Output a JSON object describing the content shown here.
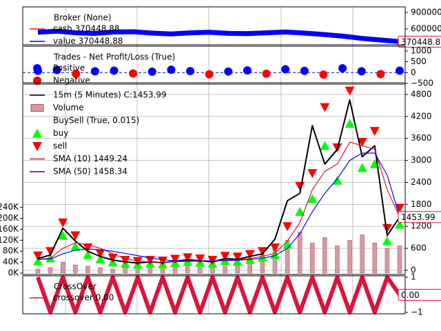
{
  "chart_data": [
    {
      "type": "line",
      "legend_title": "Broker (None)",
      "categories": [
        null,
        null,
        null,
        null,
        null,
        null,
        null,
        null,
        null,
        null,
        null,
        null,
        null,
        null,
        null,
        null,
        null,
        null,
        null,
        null
      ],
      "series": [
        {
          "name": "cash 370448.88",
          "color": "#dc143c",
          "values": [
            540000,
            560000,
            530000,
            520000,
            545000,
            550000,
            525000,
            510000,
            530000,
            540000,
            520000,
            515000,
            530000,
            545000,
            525000,
            500000,
            470000,
            430000,
            400000,
            370448.88
          ]
        },
        {
          "name": "value 370448.88",
          "color": "#0000ff",
          "values": [
            540000,
            560000,
            530000,
            520000,
            545000,
            550000,
            525000,
            510000,
            530000,
            540000,
            520000,
            515000,
            530000,
            545000,
            525000,
            500000,
            470000,
            430000,
            400000,
            370448.88
          ]
        }
      ],
      "ylim": [
        312500,
        1000000
      ],
      "yticks": [
        900000,
        600000
      ]
    },
    {
      "type": "scatter",
      "legend_title": "Trades - Net Profit/Loss (True)",
      "categories": [
        null,
        null,
        null,
        null,
        null,
        null,
        null,
        null,
        null,
        null,
        null,
        null,
        null,
        null,
        null,
        null,
        null,
        null,
        null,
        null
      ],
      "series": [
        {
          "name": "Positive",
          "color": "#0000ff",
          "values": [
            80,
            120,
            null,
            60,
            90,
            null,
            40,
            130,
            70,
            null,
            50,
            100,
            null,
            150,
            80,
            null,
            200,
            60,
            null,
            90
          ]
        },
        {
          "name": "Negative",
          "color": "#ff0000",
          "values": [
            null,
            null,
            -60,
            null,
            null,
            -40,
            null,
            null,
            null,
            -80,
            null,
            null,
            -50,
            null,
            null,
            -90,
            null,
            null,
            -70,
            null
          ]
        }
      ],
      "ylim": [
        -470,
        1220
      ],
      "yticks": [
        1000,
        500,
        0,
        {
          "value": -500,
          "label": "−500"
        }
      ]
    },
    {
      "type": "candle-line",
      "buysell_title": "BuySell (True, 0.015)",
      "categories": [
        null,
        null,
        null,
        null,
        null,
        null,
        null,
        null,
        null,
        null,
        null,
        null,
        null,
        null,
        null,
        null,
        null,
        null,
        null,
        null,
        null,
        null,
        null,
        null,
        null,
        null,
        null,
        null,
        null,
        null
      ],
      "series": [
        {
          "name": "15m (5 Minutes) C:1453.99",
          "color": "#000000",
          "axis": "y2",
          "values": [
            320,
            420,
            1150,
            800,
            520,
            380,
            280,
            230,
            200,
            230,
            210,
            250,
            290,
            260,
            230,
            320,
            300,
            380,
            450,
            850,
            1900,
            2100,
            3950,
            2900,
            3300,
            4650,
            3100,
            3400,
            950,
            1453.99
          ]
        },
        {
          "name": "Volume",
          "color": "#d49aa4",
          "kind": "bar",
          "values": [
            15000,
            20000,
            40000,
            30000,
            25000,
            20000,
            15000,
            20000,
            25000,
            30000,
            35000,
            30000,
            40000,
            45000,
            40000,
            50000,
            45000,
            55000,
            70000,
            90000,
            120000,
            150000,
            110000,
            130000,
            100000,
            120000,
            140000,
            110000,
            90000,
            100000
          ]
        },
        {
          "name": "buy",
          "color": "#00ff00",
          "axis": "y2",
          "kind": "up",
          "values": [
            250,
            330,
            950,
            650,
            420,
            300,
            220,
            180,
            160,
            180,
            165,
            200,
            235,
            210,
            180,
            260,
            240,
            290,
            350,
            420,
            700,
            1600,
            1950,
            3400,
            2450,
            4000,
            2800,
            2900,
            800,
            1250
          ]
        },
        {
          "name": "sell",
          "color": "#ff0000",
          "axis": "y2",
          "kind": "down",
          "values": [
            400,
            520,
            1300,
            950,
            620,
            460,
            340,
            280,
            250,
            280,
            260,
            310,
            350,
            320,
            280,
            390,
            370,
            440,
            520,
            620,
            1200,
            2300,
            2650,
            4450,
            3350,
            4900,
            3500,
            3800,
            1150,
            1700
          ]
        },
        {
          "name": "SMA (10) 1449.24",
          "color": "#dc143c",
          "axis": "y2",
          "values": [
            300,
            330,
            600,
            750,
            700,
            600,
            450,
            320,
            250,
            230,
            220,
            230,
            250,
            265,
            260,
            280,
            290,
            320,
            380,
            460,
            800,
            1300,
            2200,
            2700,
            2900,
            3500,
            3400,
            3300,
            2200,
            1449.24
          ]
        },
        {
          "name": "SMA (50) 1458.34",
          "color": "#0000ff",
          "axis": "y2",
          "values": [
            300,
            310,
            450,
            550,
            580,
            560,
            520,
            460,
            400,
            340,
            290,
            260,
            250,
            250,
            255,
            265,
            275,
            295,
            330,
            400,
            600,
            1000,
            1600,
            2100,
            2500,
            3000,
            3200,
            3200,
            2600,
            1458.34
          ]
        }
      ],
      "ylim": [
        -5000,
        690000
      ],
      "yticks": [
        {
          "value": 0,
          "label": "0K"
        },
        {
          "value": 40000,
          "label": "40K"
        },
        {
          "value": 80000,
          "label": "80K"
        },
        {
          "value": 120000,
          "label": "120K"
        },
        {
          "value": 160000,
          "label": "160K"
        },
        {
          "value": 200000,
          "label": "200K"
        },
        {
          "value": 240000,
          "label": "240K"
        }
      ],
      "y2lim": [
        -113,
        5082
      ],
      "y2ticks": [
        4800,
        4200,
        3600,
        3000,
        2400,
        1800,
        1200,
        600,
        0
      ]
    },
    {
      "type": "line",
      "legend_title": "CrossOver",
      "current_label": "0.00",
      "categories": [
        null,
        null,
        null,
        null,
        null,
        null,
        null,
        null,
        null,
        null,
        null,
        null,
        null,
        null,
        null,
        null,
        null,
        null,
        null,
        null,
        null,
        null,
        null,
        null,
        null,
        null,
        null,
        null,
        null,
        null
      ],
      "series": [
        {
          "name": "crossover 0.00",
          "color": "#dc143c",
          "values": [
            1,
            -1,
            1,
            -1,
            1,
            -1,
            1,
            -1,
            1,
            -1,
            1,
            -1,
            1,
            -1,
            1,
            -1,
            1,
            -1,
            1,
            -1,
            1,
            -1,
            1,
            -1,
            1,
            -1,
            1,
            -1,
            1,
            0
          ]
        }
      ],
      "ylim": [
        -1.08,
        1.08
      ],
      "yticks": [
        1,
        {
          "value": -1,
          "label": "−1"
        }
      ]
    }
  ]
}
